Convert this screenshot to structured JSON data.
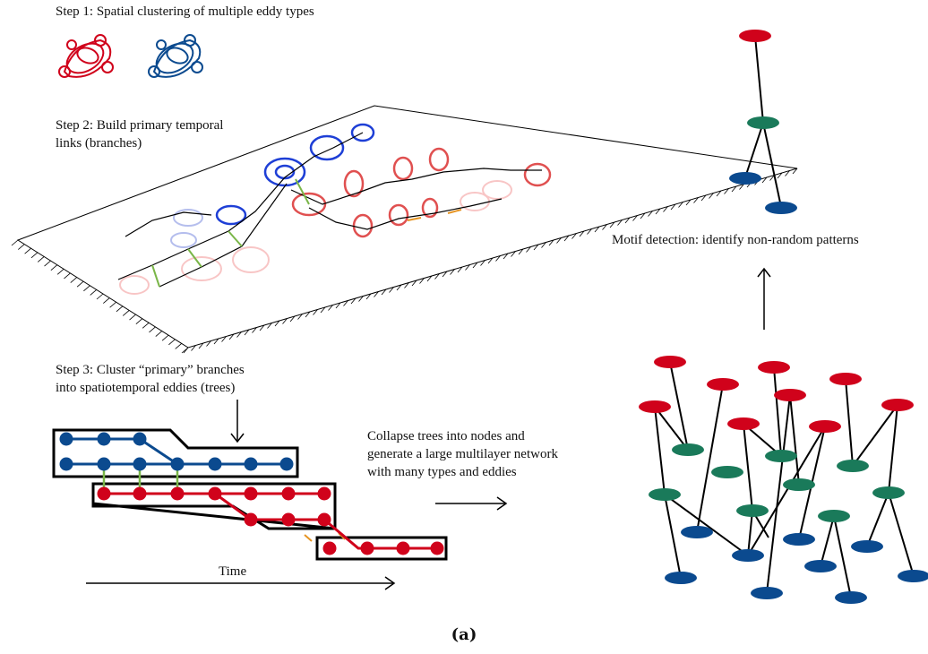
{
  "labels": {
    "step1": "Step 1: Spatial clustering  of multiple eddy types",
    "step2_line1": "Step 2: Build primary temporal",
    "step2_line2": "links (branches)",
    "step3_line1": "Step 3: Cluster “primary” branches",
    "step3_line2": "into spatiotemporal eddies (trees)",
    "collapse_line1": "Collapse trees into nodes and",
    "collapse_line2": "generate a large multilayer network",
    "collapse_line3": "with many types and eddies",
    "motif": "Motif detection: identify non-random patterns",
    "time_axis": "Time",
    "caption": "(a)"
  },
  "colors": {
    "red": "#d0021b",
    "blue": "#0b4a8f",
    "green": "#1a7a5a",
    "lime": "#7ab648",
    "orange": "#e69422",
    "black": "#000000"
  }
}
